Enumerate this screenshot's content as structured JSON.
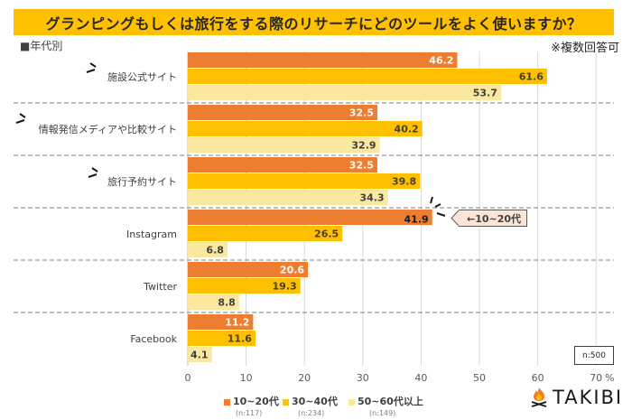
{
  "header": {
    "title": "グランピングもしくは旅行をする際のリサーチにどのツールをよく使いますか？",
    "subtitle": "■年代別",
    "note": "※複数回答可"
  },
  "chart_data": {
    "type": "bar",
    "orientation": "horizontal",
    "title": "グランピングもしくは旅行をする際のリサーチにどのツールをよく使いますか？",
    "categories": [
      "施設公式サイト",
      "情報発信メディアや比較サイト",
      "旅行予約サイト",
      "Instagram",
      "Twitter",
      "Facebook"
    ],
    "series": [
      {
        "name": "10~20代",
        "n": "(n:117)",
        "color": "#ED7D31",
        "values": [
          46.2,
          32.5,
          32.5,
          41.9,
          20.6,
          11.2
        ]
      },
      {
        "name": "30~40代",
        "n": "(n:234)",
        "color": "#FFC000",
        "values": [
          61.6,
          40.2,
          39.8,
          26.5,
          19.3,
          11.6
        ]
      },
      {
        "name": "50~60代以上",
        "n": "(n:149)",
        "color": "#FAE7A0",
        "values": [
          53.7,
          32.9,
          34.3,
          6.8,
          8.8,
          4.1
        ]
      }
    ],
    "xlim": [
      0,
      70
    ],
    "xticks": [
      "0",
      "10",
      "20",
      "30",
      "40",
      "50",
      "60",
      "70"
    ],
    "xunit": "%",
    "grid": true,
    "legend": "bottom",
    "annotation": "←10~20代",
    "sample_size": "n:500"
  },
  "logo": {
    "text": "TAKIBI"
  }
}
